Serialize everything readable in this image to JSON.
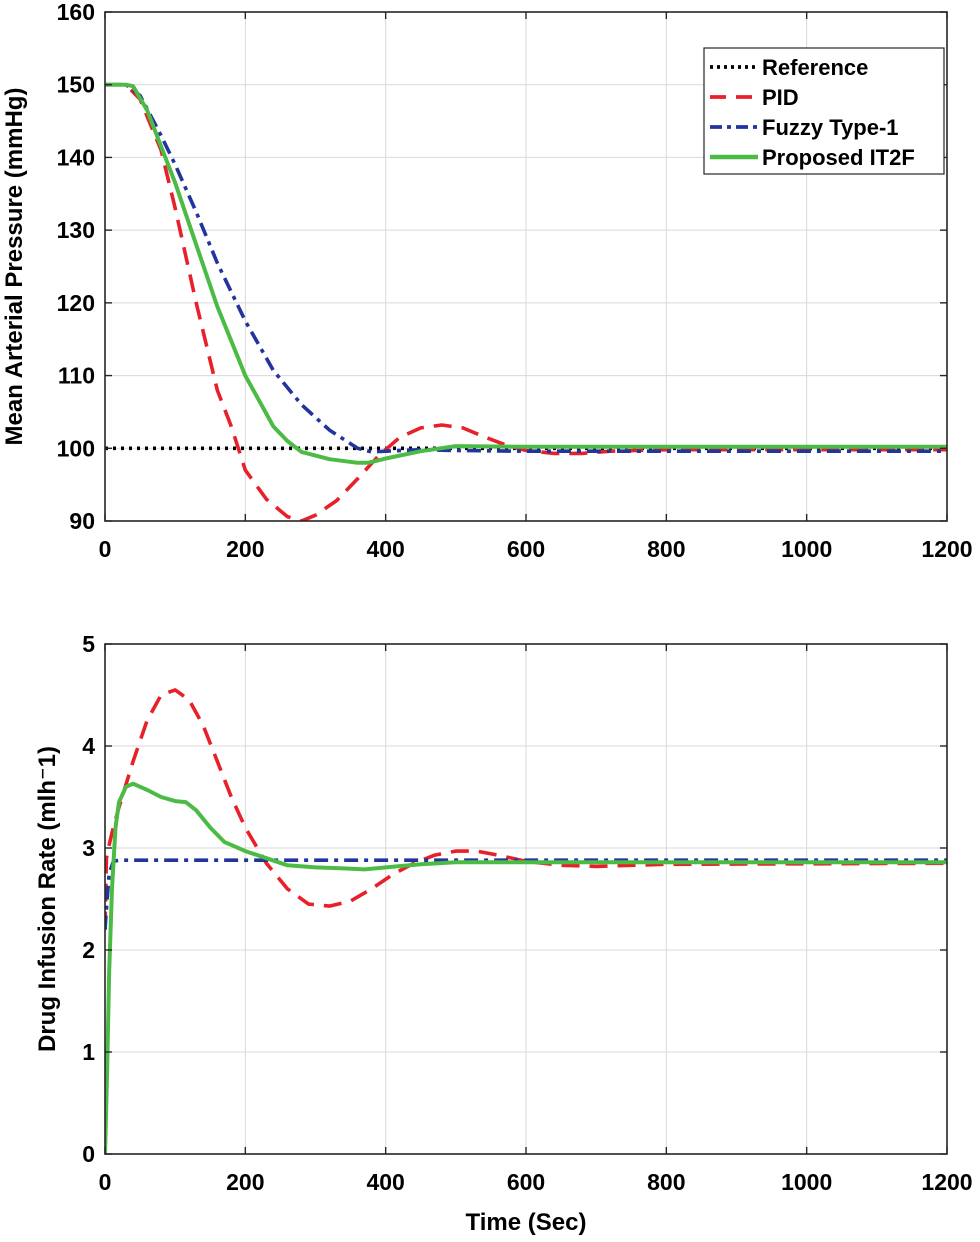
{
  "colors": {
    "reference": "#000000",
    "pid": "#e8202a",
    "fuzzy": "#23359c",
    "it2f": "#4cbb45"
  },
  "legend": {
    "placement": "top-right",
    "entries": [
      "Reference",
      "PID",
      "Fuzzy Type-1",
      "Proposed IT2F"
    ]
  },
  "chart_data": [
    {
      "type": "line",
      "title": "",
      "xlabel": "",
      "ylabel": "Mean Arterial Pressure (mmHg)",
      "xlim": [
        0,
        1200
      ],
      "ylim": [
        90,
        160
      ],
      "xticks": [
        "0",
        "200",
        "400",
        "600",
        "800",
        "1000",
        "1200"
      ],
      "yticks": [
        "90",
        "100",
        "110",
        "120",
        "130",
        "140",
        "150",
        "160"
      ],
      "grid": true,
      "series": [
        {
          "name": "Reference",
          "style": "dotted",
          "color_key": "reference",
          "x": [
            0,
            1200
          ],
          "y": [
            100,
            100
          ]
        },
        {
          "name": "PID",
          "style": "dashed",
          "color_key": "pid",
          "x": [
            0,
            30,
            50,
            80,
            100,
            130,
            160,
            180,
            200,
            230,
            260,
            280,
            300,
            330,
            360,
            390,
            420,
            450,
            480,
            510,
            540,
            570,
            600,
            640,
            680,
            720,
            800,
            1200
          ],
          "y": [
            150,
            150,
            148,
            141,
            133,
            120,
            108,
            103,
            97,
            93,
            90.6,
            90,
            90.8,
            92.8,
            95.8,
            99,
            101.5,
            102.8,
            103.2,
            102.8,
            101.6,
            100.5,
            99.7,
            99.3,
            99.3,
            99.6,
            99.8,
            99.8
          ]
        },
        {
          "name": "Fuzzy Type-1",
          "style": "dashdot",
          "color_key": "fuzzy",
          "x": [
            0,
            30,
            50,
            80,
            100,
            130,
            160,
            200,
            240,
            280,
            320,
            360,
            380,
            400,
            450,
            500,
            600,
            800,
            1200
          ],
          "y": [
            150,
            150,
            148.5,
            143,
            139,
            132.5,
            125.5,
            117.5,
            110.7,
            106,
            102.5,
            100,
            99.5,
            99.6,
            99.8,
            99.7,
            99.6,
            99.6,
            99.6
          ]
        },
        {
          "name": "Proposed IT2F",
          "style": "solid",
          "color_key": "it2f",
          "x": [
            0,
            30,
            40,
            60,
            80,
            100,
            130,
            160,
            200,
            240,
            260,
            280,
            320,
            360,
            375,
            400,
            450,
            500,
            600,
            800,
            1200
          ],
          "y": [
            150,
            150,
            149.8,
            146.5,
            141.5,
            136.5,
            128,
            119.5,
            110,
            103,
            101,
            99.5,
            98.5,
            98,
            98,
            98.6,
            99.6,
            100.3,
            100.2,
            100.2,
            100.2
          ]
        }
      ]
    },
    {
      "type": "line",
      "title": "",
      "xlabel": "Time (Sec)",
      "ylabel": "Drug Infusion Rate (mlh⁻1)",
      "xlim": [
        0,
        1200
      ],
      "ylim": [
        0,
        5
      ],
      "xticks": [
        "0",
        "200",
        "400",
        "600",
        "800",
        "1000",
        "1200"
      ],
      "yticks": [
        "0",
        "1",
        "2",
        "3",
        "4",
        "5"
      ],
      "grid": true,
      "series": [
        {
          "name": "PID",
          "style": "dashed",
          "color_key": "pid",
          "x": [
            0,
            2,
            5,
            10,
            20,
            40,
            60,
            80,
            100,
            120,
            140,
            160,
            180,
            200,
            230,
            260,
            290,
            320,
            350,
            380,
            410,
            440,
            470,
            500,
            530,
            560,
            600,
            650,
            700,
            800,
            1200
          ],
          "y": [
            2.2,
            2.9,
            3.0,
            3.15,
            3.4,
            3.85,
            4.25,
            4.5,
            4.55,
            4.45,
            4.2,
            3.85,
            3.5,
            3.2,
            2.85,
            2.6,
            2.45,
            2.43,
            2.48,
            2.6,
            2.74,
            2.85,
            2.93,
            2.97,
            2.97,
            2.93,
            2.87,
            2.83,
            2.82,
            2.84,
            2.85
          ]
        },
        {
          "name": "Fuzzy Type-1",
          "style": "dashdot",
          "color_key": "fuzzy",
          "x": [
            0,
            3,
            6,
            12,
            20,
            1200
          ],
          "y": [
            2.2,
            2.5,
            2.75,
            2.87,
            2.88,
            2.88
          ]
        },
        {
          "name": "Proposed IT2F",
          "style": "solid",
          "color_key": "it2f",
          "x": [
            0,
            3,
            6,
            10,
            15,
            20,
            30,
            40,
            60,
            80,
            100,
            115,
            130,
            150,
            170,
            200,
            230,
            260,
            300,
            340,
            370,
            400,
            450,
            500,
            600,
            800,
            1200
          ],
          "y": [
            0,
            0.8,
            1.8,
            2.6,
            3.2,
            3.45,
            3.6,
            3.63,
            3.57,
            3.5,
            3.46,
            3.45,
            3.37,
            3.2,
            3.06,
            2.97,
            2.9,
            2.83,
            2.81,
            2.8,
            2.79,
            2.81,
            2.84,
            2.86,
            2.86,
            2.86,
            2.86
          ]
        }
      ]
    }
  ]
}
